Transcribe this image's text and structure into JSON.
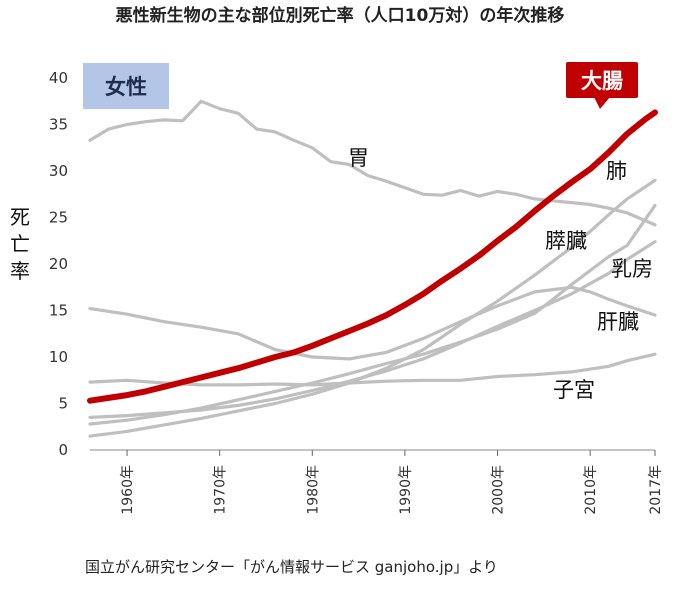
{
  "chart_data": {
    "type": "line",
    "title": "悪性新生物の主な部位別死亡率（人口10万対）の年次推移",
    "ylabel_chars": [
      "死",
      "亡",
      "率"
    ],
    "ylim": [
      0,
      40
    ],
    "yticks": [
      0,
      5,
      10,
      15,
      20,
      25,
      30,
      35,
      40
    ],
    "xlim": [
      1956,
      2017
    ],
    "xticks": [
      {
        "year": 1960,
        "label": "1960年"
      },
      {
        "year": 1970,
        "label": "1970年"
      },
      {
        "year": 1980,
        "label": "1980年"
      },
      {
        "year": 1990,
        "label": "1990年"
      },
      {
        "year": 2000,
        "label": "2000年"
      },
      {
        "year": 2010,
        "label": "2010年"
      },
      {
        "year": 2017,
        "label": "2017年"
      }
    ],
    "badges": {
      "female": "女性",
      "highlight": "大腸"
    },
    "source": "国立がん研究センター「がん情報サービス ganjoho.jp」より",
    "colors": {
      "highlight": "#c00000",
      "other": "#bfbfbf",
      "female_badge": "#b4c6e7",
      "female_text": "#1f2d4d",
      "highlight_text": "#ffffff"
    },
    "series": [
      {
        "name": "胃",
        "highlight": false,
        "points": [
          [
            1956,
            33.3
          ],
          [
            1958,
            34.5
          ],
          [
            1960,
            35.0
          ],
          [
            1962,
            35.3
          ],
          [
            1964,
            35.5
          ],
          [
            1966,
            35.4
          ],
          [
            1968,
            37.5
          ],
          [
            1970,
            36.7
          ],
          [
            1972,
            36.2
          ],
          [
            1974,
            34.5
          ],
          [
            1976,
            34.2
          ],
          [
            1978,
            33.3
          ],
          [
            1980,
            32.5
          ],
          [
            1982,
            31.0
          ],
          [
            1984,
            30.7
          ],
          [
            1986,
            29.5
          ],
          [
            1988,
            28.9
          ],
          [
            1990,
            28.2
          ],
          [
            1992,
            27.5
          ],
          [
            1994,
            27.4
          ],
          [
            1996,
            27.9
          ],
          [
            1998,
            27.3
          ],
          [
            2000,
            27.8
          ],
          [
            2002,
            27.5
          ],
          [
            2004,
            27.0
          ],
          [
            2006,
            26.8
          ],
          [
            2008,
            26.6
          ],
          [
            2010,
            26.4
          ],
          [
            2012,
            26.0
          ],
          [
            2014,
            25.5
          ],
          [
            2017,
            24.2
          ]
        ]
      },
      {
        "name": "肺",
        "highlight": false,
        "points": [
          [
            1956,
            1.5
          ],
          [
            1960,
            2.0
          ],
          [
            1964,
            2.7
          ],
          [
            1968,
            3.4
          ],
          [
            1972,
            4.2
          ],
          [
            1976,
            5.0
          ],
          [
            1980,
            6.0
          ],
          [
            1984,
            7.2
          ],
          [
            1988,
            8.8
          ],
          [
            1992,
            10.8
          ],
          [
            1996,
            13.5
          ],
          [
            2000,
            16.0
          ],
          [
            2004,
            18.8
          ],
          [
            2008,
            21.8
          ],
          [
            2010,
            23.5
          ],
          [
            2012,
            25.3
          ],
          [
            2014,
            27.0
          ],
          [
            2017,
            29.0
          ]
        ]
      },
      {
        "name": "膵臓",
        "highlight": false,
        "points": [
          [
            1956,
            2.8
          ],
          [
            1960,
            3.2
          ],
          [
            1964,
            3.8
          ],
          [
            1968,
            4.5
          ],
          [
            1972,
            5.4
          ],
          [
            1976,
            6.3
          ],
          [
            1980,
            7.2
          ],
          [
            1984,
            8.2
          ],
          [
            1988,
            9.3
          ],
          [
            1992,
            10.3
          ],
          [
            1996,
            11.6
          ],
          [
            2000,
            13.0
          ],
          [
            2004,
            14.7
          ],
          [
            2006,
            16.2
          ],
          [
            2008,
            17.8
          ],
          [
            2010,
            19.3
          ],
          [
            2012,
            20.8
          ],
          [
            2014,
            22.0
          ],
          [
            2017,
            26.3
          ]
        ]
      },
      {
        "name": "乳房",
        "highlight": false,
        "points": [
          [
            1956,
            3.5
          ],
          [
            1960,
            3.7
          ],
          [
            1964,
            4.0
          ],
          [
            1968,
            4.3
          ],
          [
            1972,
            4.8
          ],
          [
            1976,
            5.5
          ],
          [
            1980,
            6.4
          ],
          [
            1984,
            7.4
          ],
          [
            1988,
            8.5
          ],
          [
            1992,
            9.8
          ],
          [
            1996,
            11.5
          ],
          [
            2000,
            13.3
          ],
          [
            2004,
            15.0
          ],
          [
            2008,
            16.8
          ],
          [
            2012,
            19.0
          ],
          [
            2014,
            20.5
          ],
          [
            2017,
            22.4
          ]
        ]
      },
      {
        "name": "肝臓",
        "highlight": false,
        "points": [
          [
            1956,
            15.2
          ],
          [
            1960,
            14.6
          ],
          [
            1964,
            13.8
          ],
          [
            1968,
            13.2
          ],
          [
            1972,
            12.5
          ],
          [
            1976,
            10.8
          ],
          [
            1980,
            10.0
          ],
          [
            1984,
            9.8
          ],
          [
            1988,
            10.5
          ],
          [
            1992,
            12.0
          ],
          [
            1996,
            13.8
          ],
          [
            2000,
            15.5
          ],
          [
            2004,
            17.0
          ],
          [
            2008,
            17.5
          ],
          [
            2010,
            17.0
          ],
          [
            2012,
            16.2
          ],
          [
            2014,
            15.5
          ],
          [
            2017,
            14.5
          ]
        ]
      },
      {
        "name": "子宮",
        "highlight": false,
        "points": [
          [
            1956,
            7.3
          ],
          [
            1960,
            7.5
          ],
          [
            1964,
            7.2
          ],
          [
            1968,
            7.0
          ],
          [
            1972,
            7.0
          ],
          [
            1976,
            7.1
          ],
          [
            1980,
            7.0
          ],
          [
            1984,
            7.2
          ],
          [
            1988,
            7.4
          ],
          [
            1992,
            7.5
          ],
          [
            1996,
            7.5
          ],
          [
            2000,
            7.9
          ],
          [
            2004,
            8.1
          ],
          [
            2008,
            8.4
          ],
          [
            2012,
            9.0
          ],
          [
            2014,
            9.6
          ],
          [
            2017,
            10.3
          ]
        ]
      },
      {
        "name": "大腸",
        "highlight": true,
        "points": [
          [
            1956,
            5.3
          ],
          [
            1958,
            5.6
          ],
          [
            1960,
            5.9
          ],
          [
            1962,
            6.3
          ],
          [
            1964,
            6.8
          ],
          [
            1966,
            7.3
          ],
          [
            1968,
            7.8
          ],
          [
            1970,
            8.3
          ],
          [
            1972,
            8.8
          ],
          [
            1974,
            9.4
          ],
          [
            1976,
            10.0
          ],
          [
            1978,
            10.5
          ],
          [
            1980,
            11.2
          ],
          [
            1982,
            12.0
          ],
          [
            1984,
            12.8
          ],
          [
            1986,
            13.6
          ],
          [
            1988,
            14.5
          ],
          [
            1990,
            15.6
          ],
          [
            1992,
            16.8
          ],
          [
            1994,
            18.2
          ],
          [
            1996,
            19.5
          ],
          [
            1998,
            20.9
          ],
          [
            2000,
            22.5
          ],
          [
            2002,
            24.0
          ],
          [
            2004,
            25.7
          ],
          [
            2006,
            27.3
          ],
          [
            2008,
            28.8
          ],
          [
            2010,
            30.2
          ],
          [
            2012,
            32.0
          ],
          [
            2014,
            34.0
          ],
          [
            2016,
            35.6
          ],
          [
            2017,
            36.3
          ]
        ]
      }
    ]
  }
}
